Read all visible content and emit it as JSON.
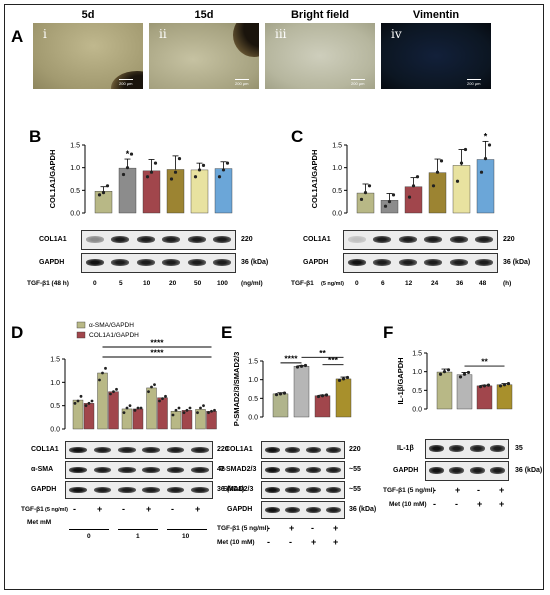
{
  "figure": {
    "panels": {
      "A": "A",
      "B": "B",
      "C": "C",
      "D": "D",
      "E": "E",
      "F": "F"
    },
    "micrographs": [
      {
        "heading": "5d",
        "numeral": "i",
        "scale": "200 μm",
        "tone": "#a29a70"
      },
      {
        "heading": "15d",
        "numeral": "ii",
        "scale": "200 μm",
        "tone": "#a6a280"
      },
      {
        "heading": "Bright field",
        "numeral": "iii",
        "scale": "200 μm",
        "tone": "#b6b69e"
      },
      {
        "heading": "Vimentin",
        "numeral": "iv",
        "scale": "200 μm",
        "tone": "#0c1622"
      }
    ],
    "colors": {
      "olive": "#b8b886",
      "grey": "#8c8c8c",
      "red": "#a1464c",
      "brown": "#9c8432",
      "cream": "#e8e2a0",
      "blue": "#6ba6d8",
      "light_grey": "#b6b6b6",
      "gold": "#a8902c",
      "sage": "#b0b48c"
    },
    "B": {
      "chart_data": {
        "type": "bar",
        "ylabel": "COL1A1/GAPDH",
        "ylim": [
          0,
          1.5
        ],
        "yticks": [
          "0.0",
          "0.5",
          "1.0",
          "1.5"
        ],
        "categories": [
          "0",
          "5",
          "10",
          "20",
          "50",
          "100"
        ],
        "values": [
          0.48,
          0.99,
          0.93,
          0.96,
          0.95,
          0.98
        ],
        "errors": [
          0.1,
          0.2,
          0.25,
          0.3,
          0.15,
          0.15
        ],
        "points": [
          [
            0.4,
            0.45,
            0.6
          ],
          [
            0.85,
            1.0,
            1.3
          ],
          [
            0.8,
            0.9,
            1.1
          ],
          [
            0.75,
            0.9,
            1.2
          ],
          [
            0.8,
            0.95,
            1.05
          ],
          [
            0.8,
            0.95,
            1.1
          ]
        ],
        "significance": [
          {
            "index": 1,
            "label": "*"
          }
        ],
        "colors": [
          "#b8b886",
          "#8c8c8c",
          "#a1464c",
          "#9c8432",
          "#e8e2a0",
          "#6ba6d8"
        ]
      },
      "blots": [
        "COL1A1",
        "GAPDH"
      ],
      "kda": [
        "220",
        "36 (kDa)"
      ],
      "condition": "TGF-β1 (48 h)",
      "unit": "(ng/ml)"
    },
    "C": {
      "chart_data": {
        "type": "bar",
        "ylabel": "COL1A1/GAPDH",
        "ylim": [
          0,
          1.5
        ],
        "yticks": [
          "0.0",
          "0.5",
          "1.0",
          "1.5"
        ],
        "categories": [
          "0",
          "6",
          "12",
          "24",
          "36",
          "48"
        ],
        "values": [
          0.44,
          0.28,
          0.58,
          0.89,
          1.05,
          1.18
        ],
        "errors": [
          0.2,
          0.15,
          0.2,
          0.3,
          0.35,
          0.4
        ],
        "points": [
          [
            0.3,
            0.45,
            0.6
          ],
          [
            0.15,
            0.25,
            0.4
          ],
          [
            0.35,
            0.6,
            0.8
          ],
          [
            0.6,
            0.9,
            1.15
          ],
          [
            0.7,
            1.1,
            1.4
          ],
          [
            0.9,
            1.2,
            1.5
          ]
        ],
        "significance": [
          {
            "index": 5,
            "label": "*"
          }
        ],
        "colors": [
          "#b8b886",
          "#8c8c8c",
          "#a1464c",
          "#9c8432",
          "#e8e2a0",
          "#6ba6d8"
        ]
      },
      "blots": [
        "COL1A1",
        "GAPDH"
      ],
      "kda": [
        "220",
        "36 (kDa)"
      ],
      "condition": "TGF-β1",
      "condition_sub": "(5 ng/ml)",
      "unit": "(h)"
    },
    "D": {
      "chart_data": {
        "type": "bar",
        "ylim": [
          0,
          1.5
        ],
        "yticks": [
          "0.0",
          "0.5",
          "1.0",
          "1.5"
        ],
        "series": [
          {
            "name": "α-SMA/GAPDH",
            "color": "#b8b886",
            "values": [
              0.62,
              1.2,
              0.43,
              0.88,
              0.38,
              0.42
            ],
            "points": [
              [
                0.55,
                0.6,
                0.7
              ],
              [
                1.05,
                1.2,
                1.3
              ],
              [
                0.35,
                0.45,
                0.5
              ],
              [
                0.8,
                0.9,
                0.95
              ],
              [
                0.3,
                0.4,
                0.45
              ],
              [
                0.35,
                0.45,
                0.5
              ]
            ]
          },
          {
            "name": "COL1A1/GAPDH",
            "color": "#a1464c",
            "values": [
              0.55,
              0.8,
              0.43,
              0.67,
              0.4,
              0.38
            ],
            "points": [
              [
                0.5,
                0.55,
                0.6
              ],
              [
                0.75,
                0.8,
                0.85
              ],
              [
                0.4,
                0.45,
                0.45
              ],
              [
                0.6,
                0.65,
                0.7
              ],
              [
                0.35,
                0.4,
                0.45
              ],
              [
                0.35,
                0.38,
                0.4
              ]
            ]
          }
        ],
        "brackets": [
          {
            "from": 1,
            "to": 5,
            "label": "****"
          },
          {
            "from": 1,
            "to": 5,
            "label": "****"
          }
        ]
      },
      "blots": [
        "COL1A1",
        "α-SMA",
        "GAPDH"
      ],
      "kda": [
        "220",
        "42",
        "36 (kDa)"
      ],
      "tgf_label": "TGF-β1",
      "tgf_sub": "(5 ng/ml)",
      "tgf_signs": [
        "-",
        "+",
        "-",
        "+",
        "-",
        "+"
      ],
      "met_label": "Met mM",
      "met_groups": [
        "0",
        "1",
        "10"
      ]
    },
    "E": {
      "chart_data": {
        "type": "bar",
        "ylabel": "P-SMAD2/3/SMAD2/3",
        "ylim": [
          0,
          1.5
        ],
        "yticks": [
          "0.0",
          "0.5",
          "1.0",
          "1.5"
        ],
        "values": [
          0.62,
          1.36,
          0.57,
          1.02
        ],
        "errors": [
          0.03,
          0.02,
          0.02,
          0.05
        ],
        "points": [
          [
            0.6,
            0.62,
            0.64
          ],
          [
            1.34,
            1.36,
            1.38
          ],
          [
            0.55,
            0.57,
            0.59
          ],
          [
            0.98,
            1.02,
            1.06
          ]
        ],
        "colors": [
          "#b0b48c",
          "#b6b6b6",
          "#a1464c",
          "#a8902c"
        ],
        "brackets": [
          {
            "from": 0,
            "to": 1,
            "label": "****",
            "level": 1.45
          },
          {
            "from": 1,
            "to": 3,
            "label": "**",
            "level": 1.6
          },
          {
            "from": 2,
            "to": 3,
            "label": "***",
            "level": 1.4
          }
        ]
      },
      "blots": [
        "COL1A1",
        "P-SMAD2/3",
        "SMAD2/3",
        "GAPDH"
      ],
      "kda": [
        "220",
        "~55",
        "~55",
        "36 (kDa)"
      ],
      "tgf_label": "TGF-β1 (5 ng/ml)",
      "tgf_signs": [
        "-",
        "+",
        "-",
        "+"
      ],
      "met_label": "Met (10 mM)",
      "met_signs": [
        "-",
        "-",
        "+",
        "+"
      ]
    },
    "F": {
      "chart_data": {
        "type": "bar",
        "ylabel": "IL-1β/GAPDH",
        "ylim": [
          0,
          1.5
        ],
        "yticks": [
          "0.0",
          "0.5",
          "1.0",
          "1.5"
        ],
        "values": [
          0.99,
          0.92,
          0.62,
          0.65
        ],
        "errors": [
          0.08,
          0.06,
          0.02,
          0.03
        ],
        "points": [
          [
            0.93,
            1.0,
            1.05
          ],
          [
            0.86,
            0.93,
            0.98
          ],
          [
            0.6,
            0.62,
            0.64
          ],
          [
            0.62,
            0.65,
            0.68
          ]
        ],
        "colors": [
          "#b8b886",
          "#b6b6b6",
          "#a1464c",
          "#a8902c"
        ],
        "brackets": [
          {
            "from": 1,
            "to": 3,
            "label": "**",
            "level": 1.15
          }
        ]
      },
      "blots": [
        "IL-1β",
        "GAPDH"
      ],
      "kda": [
        "35",
        "36 (kDa)"
      ],
      "tgf_label": "TGF-β1 (5 ng/ml)",
      "tgf_signs": [
        "-",
        "+",
        "-",
        "+"
      ],
      "met_label": "Met (10 mM)",
      "met_signs": [
        "-",
        "-",
        "+",
        "+"
      ]
    }
  }
}
